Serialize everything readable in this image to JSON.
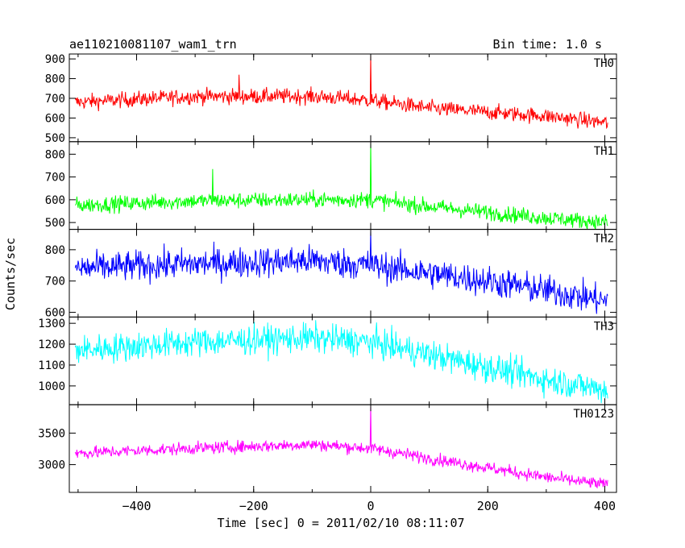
{
  "header": {
    "title": "ae110210081107_wam1_trn",
    "bin_time": "Bin time: 1.0 s"
  },
  "axes": {
    "xlabel": "Time [sec] 0 = 2011/02/10 08:11:07",
    "ylabel": "Counts/sec",
    "xlim": [
      -515,
      420
    ],
    "xticks": [
      -400,
      -200,
      0,
      200,
      400
    ],
    "xtick_labels": [
      "−400",
      "−200",
      "0",
      "200",
      "400"
    ]
  },
  "chart_data": [
    {
      "type": "line",
      "name": "TH0",
      "color": "#ff0000",
      "ylim": [
        480,
        925
      ],
      "yticks": [
        500,
        600,
        700,
        800,
        900
      ],
      "x_range": [
        -505,
        405
      ],
      "trend": [
        [
          -505,
          680
        ],
        [
          -300,
          710
        ],
        [
          -100,
          710
        ],
        [
          0,
          690
        ],
        [
          100,
          650
        ],
        [
          200,
          630
        ],
        [
          300,
          610
        ],
        [
          405,
          575
        ]
      ],
      "noise": 28,
      "spikes": [
        [
          0,
          925
        ],
        [
          -225,
          820
        ]
      ]
    },
    {
      "type": "line",
      "name": "TH1",
      "color": "#00ff00",
      "ylim": [
        470,
        855
      ],
      "yticks": [
        500,
        600,
        700,
        800
      ],
      "x_range": [
        -505,
        405
      ],
      "trend": [
        [
          -505,
          575
        ],
        [
          -300,
          595
        ],
        [
          -100,
          600
        ],
        [
          0,
          600
        ],
        [
          100,
          570
        ],
        [
          200,
          545
        ],
        [
          300,
          520
        ],
        [
          405,
          500
        ]
      ],
      "noise": 25,
      "spikes": [
        [
          0,
          855
        ],
        [
          -270,
          735
        ]
      ]
    },
    {
      "type": "line",
      "name": "TH2",
      "color": "#0000ff",
      "ylim": [
        585,
        865
      ],
      "yticks": [
        600,
        700,
        800
      ],
      "x_range": [
        -505,
        405
      ],
      "trend": [
        [
          -505,
          740
        ],
        [
          -300,
          755
        ],
        [
          -100,
          765
        ],
        [
          0,
          750
        ],
        [
          100,
          725
        ],
        [
          200,
          700
        ],
        [
          300,
          670
        ],
        [
          405,
          635
        ]
      ],
      "noise": 35,
      "spikes": [
        [
          0,
          865
        ]
      ]
    },
    {
      "type": "line",
      "name": "TH3",
      "color": "#00ffff",
      "ylim": [
        910,
        1330
      ],
      "yticks": [
        1000,
        1100,
        1200,
        1300
      ],
      "x_range": [
        -505,
        405
      ],
      "trend": [
        [
          -505,
          1170
        ],
        [
          -300,
          1210
        ],
        [
          -100,
          1230
        ],
        [
          0,
          1210
        ],
        [
          100,
          1150
        ],
        [
          200,
          1090
        ],
        [
          300,
          1030
        ],
        [
          405,
          980
        ]
      ],
      "noise": 50,
      "spikes": []
    },
    {
      "type": "line",
      "name": "TH0123",
      "color": "#ff00ff",
      "ylim": [
        2560,
        3950
      ],
      "yticks": [
        3000,
        3500
      ],
      "x_range": [
        -505,
        405
      ],
      "trend": [
        [
          -505,
          3180
        ],
        [
          -300,
          3260
        ],
        [
          -100,
          3320
        ],
        [
          0,
          3260
        ],
        [
          100,
          3100
        ],
        [
          200,
          2950
        ],
        [
          300,
          2800
        ],
        [
          405,
          2680
        ]
      ],
      "noise": 70,
      "spikes": [
        [
          0,
          3950
        ]
      ]
    }
  ]
}
